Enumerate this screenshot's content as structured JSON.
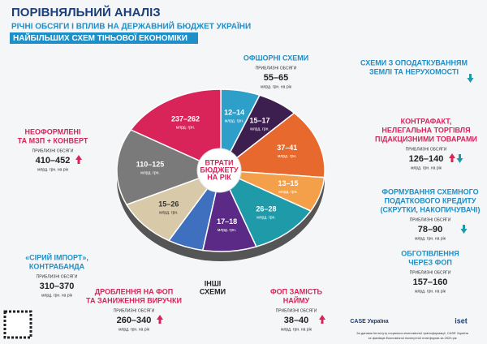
{
  "header": {
    "title": "ПОРІВНЯЛЬНИЙ АНАЛІЗ",
    "subtitle": "РІЧНІ ОБСЯГИ І ВПЛИВ НА ДЕРЖАВНИЙ БЮДЖЕТ УКРАЇНИ",
    "highlight": "НАЙБІЛЬШИХ СХЕМ ТІНЬОВОЇ ЕКОНОМІКИ"
  },
  "pie": {
    "center_label": [
      "ВТРАТИ",
      "БЮДЖЕТУ",
      "НА РІК"
    ],
    "slices": [
      {
        "range": "12–14",
        "unit": "млрд. грн."
      },
      {
        "range": "15–17",
        "unit": "млрд. грн."
      },
      {
        "range": "37–41",
        "unit": "млрд. грн."
      },
      {
        "range": "13–15",
        "unit": "млрд. грн."
      },
      {
        "range": "26–28",
        "unit": "млрд. грн."
      },
      {
        "range": "17–18",
        "unit": "млрд. грн."
      },
      {
        "range": "15–26",
        "unit": "млрд. грн."
      },
      {
        "range": "110–125",
        "unit": "млрд. грн."
      },
      {
        "range": "237–262",
        "unit": "млрд. грн."
      }
    ],
    "other_label": [
      "ІНШІ",
      "СХЕМИ"
    ]
  },
  "schemes": [
    {
      "name": [
        "ОФШОРНІ СХЕМИ"
      ],
      "volume_label": "ПРИБЛИЗНІ ОБСЯГИ",
      "volume": "55–65",
      "unit": "млрд. грн. на рік"
    },
    {
      "name": [
        "СХЕМИ З ОПОДАТКУВАННЯМ",
        "ЗЕМЛІ ТА НЕРУХОМОСТІ"
      ]
    },
    {
      "name": [
        "КОНТРАФАКТ,",
        "НЕЛЕГАЛЬНА ТОРГІВЛЯ",
        "ПІДАКЦИЗНИМИ ТОВАРАМИ"
      ],
      "volume_label": "ПРИБЛИЗНІ ОБСЯГИ",
      "volume": "126–140",
      "unit": "млрд. грн. на рік"
    },
    {
      "name": [
        "ФОРМУВАННЯ СХЕМНОГО",
        "ПОДАТКОВОГО КРЕДИТУ",
        "(СКРУТКИ, НАКОПИЧУВАЧІ)"
      ],
      "volume_label": "ПРИБЛИЗНІ ОБСЯГИ",
      "volume": "78–90",
      "unit": "млрд. грн. на рік"
    },
    {
      "name": [
        "ОБГОТІВЛЕННЯ",
        "ЧЕРЕЗ ФОП"
      ],
      "volume_label": "ПРИБЛИЗНІ ОБСЯГИ",
      "volume": "157–160",
      "unit": "млрд. грн. на рік"
    },
    {
      "name": [
        "ФОП ЗАМІСТЬ",
        "НАЙМУ"
      ],
      "volume_label": "ПРИБЛИЗНІ ОБСЯГИ",
      "volume": "38–40",
      "unit": "млрд. грн. на рік"
    },
    {
      "name": [
        "ДРОБЛЕННЯ НА ФОП",
        "ТА ЗАНИЖЕННЯ ВИРУЧКИ"
      ],
      "volume_label": "ПРИБЛИЗНІ ОБСЯГИ",
      "volume": "260–340",
      "unit": "млрд. грн. на рік"
    },
    {
      "name": [
        "«СІРИЙ ІМПОРТ»,",
        "КОНТРАБАНДА"
      ],
      "volume_label": "ПРИБЛИЗНІ ОБСЯГИ",
      "volume": "310–370",
      "unit": "млрд. грн. на рік"
    },
    {
      "name": [
        "НЕОФОРМЛЕНІ",
        "ТА МЗП + КОНВЕРТ"
      ],
      "volume_label": "ПРИБЛИЗНІ ОБСЯГИ",
      "volume": "410–452",
      "unit": "млрд. грн. на рік"
    }
  ],
  "footer": {
    "logos": [
      "CASE Україна",
      "iset"
    ],
    "source": [
      "За даними Інституту соціально-економічної трансформації, CASE Україна",
      "та фахівців Економічної експертної платформи за 2023 рік"
    ]
  }
}
